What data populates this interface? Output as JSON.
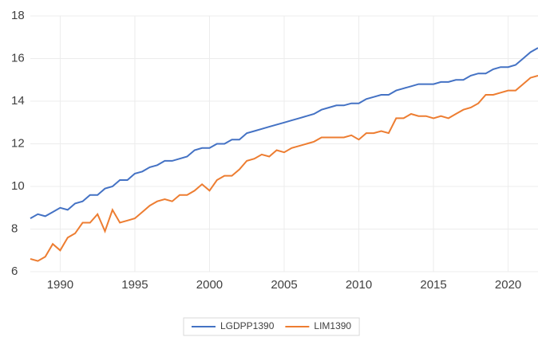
{
  "chart_data": {
    "type": "line",
    "x": [
      1988,
      1988.5,
      1989,
      1989.5,
      1990,
      1990.5,
      1991,
      1991.5,
      1992,
      1992.5,
      1993,
      1993.5,
      1994,
      1994.5,
      1995,
      1995.5,
      1996,
      1996.5,
      1997,
      1997.5,
      1998,
      1998.5,
      1999,
      1999.5,
      2000,
      2000.5,
      2001,
      2001.5,
      2002,
      2002.5,
      2003,
      2003.5,
      2004,
      2004.5,
      2005,
      2005.5,
      2006,
      2006.5,
      2007,
      2007.5,
      2008,
      2008.5,
      2009,
      2009.5,
      2010,
      2010.5,
      2011,
      2011.5,
      2012,
      2012.5,
      2013,
      2013.5,
      2014,
      2014.5,
      2015,
      2015.5,
      2016,
      2016.5,
      2017,
      2017.5,
      2018,
      2018.5,
      2019,
      2019.5,
      2020,
      2020.5,
      2021,
      2021.5,
      2022
    ],
    "series": [
      {
        "name": "LGDPP1390",
        "color": "#4472c4",
        "values": [
          8.5,
          8.7,
          8.6,
          8.8,
          9.0,
          8.9,
          9.2,
          9.3,
          9.6,
          9.6,
          9.9,
          10.0,
          10.3,
          10.3,
          10.6,
          10.7,
          10.9,
          11.0,
          11.2,
          11.2,
          11.3,
          11.4,
          11.7,
          11.8,
          11.8,
          12.0,
          12.0,
          12.2,
          12.2,
          12.5,
          12.6,
          12.7,
          12.8,
          12.9,
          13.0,
          13.1,
          13.2,
          13.3,
          13.4,
          13.6,
          13.7,
          13.8,
          13.8,
          13.9,
          13.9,
          14.1,
          14.2,
          14.3,
          14.3,
          14.5,
          14.6,
          14.7,
          14.8,
          14.8,
          14.8,
          14.9,
          14.9,
          15.0,
          15.0,
          15.2,
          15.3,
          15.3,
          15.5,
          15.6,
          15.6,
          15.7,
          16.0,
          16.3,
          16.5
        ]
      },
      {
        "name": "LIM1390",
        "color": "#ed7d31",
        "values": [
          6.6,
          6.5,
          6.7,
          7.3,
          7.0,
          7.6,
          7.8,
          8.3,
          8.3,
          8.7,
          7.9,
          8.9,
          8.3,
          8.4,
          8.5,
          8.8,
          9.1,
          9.3,
          9.4,
          9.3,
          9.6,
          9.6,
          9.8,
          10.1,
          9.8,
          10.3,
          10.5,
          10.5,
          10.8,
          11.2,
          11.3,
          11.5,
          11.4,
          11.7,
          11.6,
          11.8,
          11.9,
          12.0,
          12.1,
          12.3,
          12.3,
          12.3,
          12.3,
          12.4,
          12.2,
          12.5,
          12.5,
          12.6,
          12.5,
          13.2,
          13.2,
          13.4,
          13.3,
          13.3,
          13.2,
          13.3,
          13.2,
          13.4,
          13.6,
          13.7,
          13.9,
          14.3,
          14.3,
          14.4,
          14.5,
          14.5,
          14.8,
          15.1,
          15.2
        ]
      }
    ],
    "xlim": [
      1988,
      2022
    ],
    "xticks": [
      1990,
      1995,
      2000,
      2005,
      2010,
      2015,
      2020
    ],
    "ylim": [
      6,
      18
    ],
    "yticks": [
      6,
      8,
      10,
      12,
      14,
      16,
      18
    ],
    "grid": true
  }
}
